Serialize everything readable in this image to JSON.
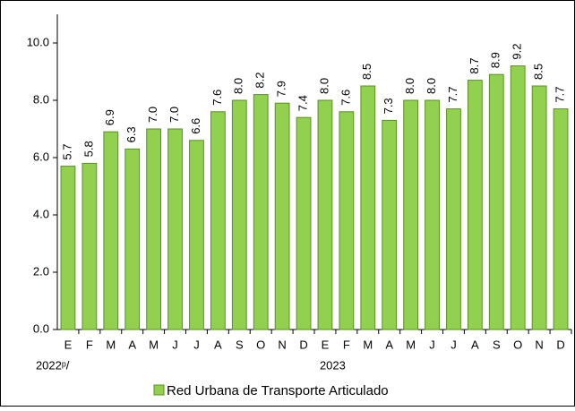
{
  "chart_data": {
    "type": "bar",
    "categories": [
      "E",
      "F",
      "M",
      "A",
      "M",
      "J",
      "J",
      "A",
      "S",
      "O",
      "N",
      "D",
      "E",
      "F",
      "M",
      "A",
      "M",
      "J",
      "J",
      "A",
      "S",
      "O",
      "N",
      "D"
    ],
    "groups": [
      {
        "label": "2022ᵖ/",
        "count": 12
      },
      {
        "label": "2023",
        "count": 12
      }
    ],
    "series": [
      {
        "name": "Red Urbana de Transporte Articulado",
        "color": "#92d050",
        "values": [
          5.7,
          5.8,
          6.9,
          6.3,
          7.0,
          7.0,
          6.6,
          7.6,
          8.0,
          8.2,
          7.9,
          7.4,
          8.0,
          7.6,
          8.5,
          7.3,
          8.0,
          8.0,
          7.7,
          8.7,
          8.9,
          9.2,
          8.5,
          7.7
        ],
        "value_labels": [
          "5.7",
          "5.8",
          "6.9",
          "6.3",
          "7.0",
          "7.0",
          "6.6",
          "7.6",
          "8.0",
          "8.2",
          "7.9",
          "7.4",
          "8.0",
          "7.6",
          "8.5",
          "7.3",
          "8.0",
          "8.0",
          "7.7",
          "8.7",
          "8.9",
          "9.2",
          "8.5",
          "7.7"
        ]
      }
    ],
    "ylim": [
      0,
      11
    ],
    "yticks": [
      {
        "value": 0,
        "label": "0.0"
      },
      {
        "value": 2,
        "label": "2.0"
      },
      {
        "value": 4,
        "label": "4.0"
      },
      {
        "value": 6,
        "label": "6.0"
      },
      {
        "value": 8,
        "label": "8.0"
      },
      {
        "value": 10,
        "label": "10.0"
      }
    ],
    "legend": "bottom"
  }
}
